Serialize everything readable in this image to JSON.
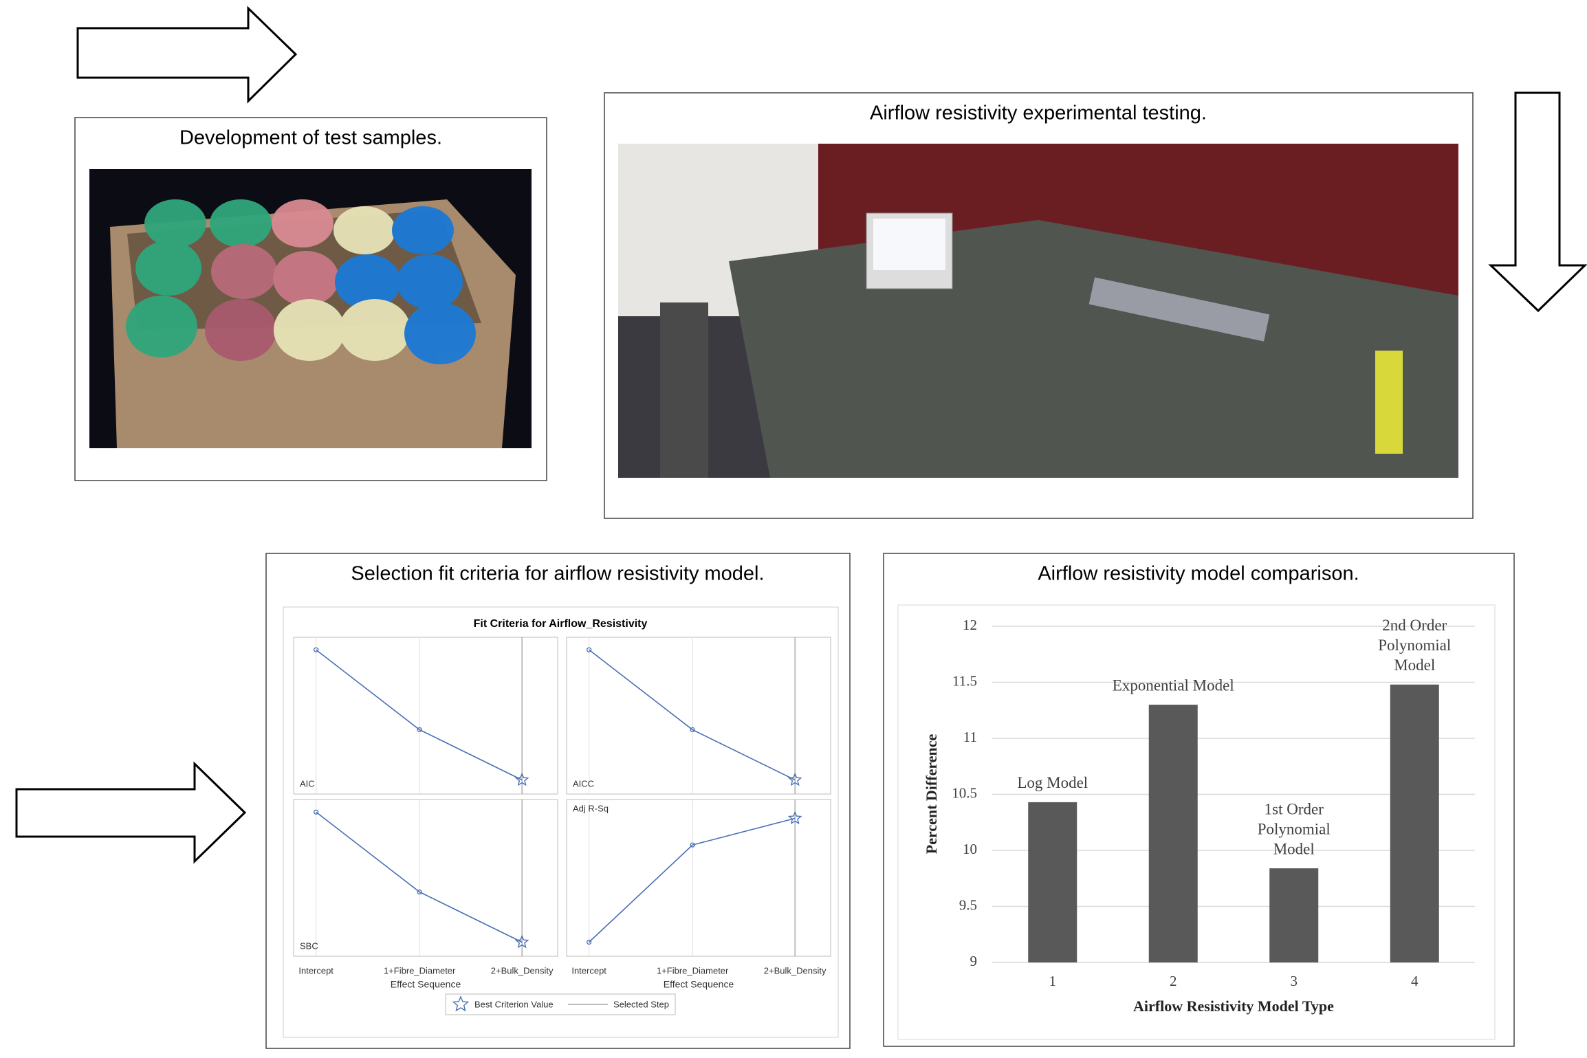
{
  "panels": [
    {
      "title": "Development of test samples."
    },
    {
      "title": "Airflow resistivity experimental testing."
    },
    {
      "title": "Selection fit criteria for airflow resistivity model."
    },
    {
      "title": "Airflow resistivity model comparison."
    }
  ],
  "chart_data": [
    {
      "type": "line",
      "title": "Fit Criteria for Airflow_Resistivity",
      "categories": [
        "Intercept",
        "1+Fibre_Diameter",
        "2+Bulk_Density"
      ],
      "x_label": "Effect Sequence",
      "ylim": [
        0,
        1
      ],
      "color": "#4a6fb5",
      "series": [
        {
          "name": "AIC",
          "values": [
            0.92,
            0.41,
            0.09
          ],
          "label_position": "bottom-left"
        },
        {
          "name": "AICC",
          "values": [
            0.92,
            0.41,
            0.09
          ],
          "label_position": "bottom-left"
        },
        {
          "name": "SBC",
          "values": [
            0.92,
            0.41,
            0.09
          ],
          "label_position": "bottom-left"
        },
        {
          "name": "Adj R-Sq",
          "values": [
            0.09,
            0.71,
            0.88
          ],
          "label_position": "top-left"
        }
      ],
      "legend": [
        "Best Criterion Value",
        "Selected Step"
      ]
    },
    {
      "type": "bar",
      "categories": [
        "1",
        "2",
        "3",
        "4"
      ],
      "values": [
        10.43,
        11.3,
        9.84,
        11.48
      ],
      "color": "#595959",
      "annotations": [
        [
          "Log Model"
        ],
        [
          "Exponential Model"
        ],
        [
          "1st Order",
          "Polynomial",
          "Model"
        ],
        [
          "2nd Order",
          "Polynomial",
          "Model"
        ]
      ],
      "ylim": [
        9,
        12
      ],
      "yticks": [
        9,
        9.5,
        10,
        10.5,
        11,
        11.5,
        12
      ],
      "grid": true,
      "x_label": "Airflow Resistivity Model Type",
      "y_label": "Percent Difference"
    }
  ]
}
